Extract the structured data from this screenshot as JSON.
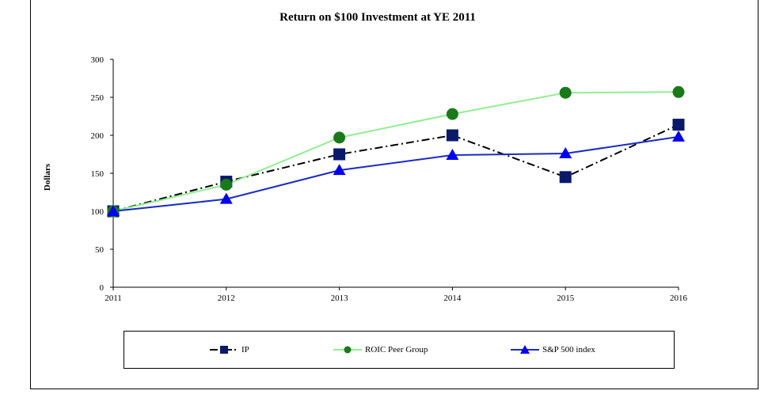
{
  "chart_data": {
    "type": "line",
    "title": "Return on $100 Investment at YE 2011",
    "xlabel": "",
    "ylabel": "Dollars",
    "categories": [
      "2011",
      "2012",
      "2013",
      "2014",
      "2015",
      "2016"
    ],
    "ylim": [
      0,
      300
    ],
    "yticks": [
      "0",
      "50",
      "100",
      "150",
      "200",
      "250",
      "300"
    ],
    "grid": false,
    "legend_position": "bottom",
    "series": [
      {
        "name": "IP",
        "values": [
          100,
          139,
          175,
          200,
          145,
          214
        ],
        "color": "#000000",
        "marker_color": "#0a1a6b",
        "marker": "square",
        "dash": "dashdot"
      },
      {
        "name": "ROIC Peer Group",
        "values": [
          100,
          135,
          197,
          228,
          256,
          257
        ],
        "color": "#90ee90",
        "marker_color": "#1a7a1a",
        "marker": "circle",
        "dash": "solid"
      },
      {
        "name": "S&P 500 index",
        "values": [
          100,
          116,
          154,
          174,
          176,
          198
        ],
        "color": "#1a2bc2",
        "marker_color": "#0000ee",
        "marker": "triangle",
        "dash": "solid"
      }
    ]
  }
}
